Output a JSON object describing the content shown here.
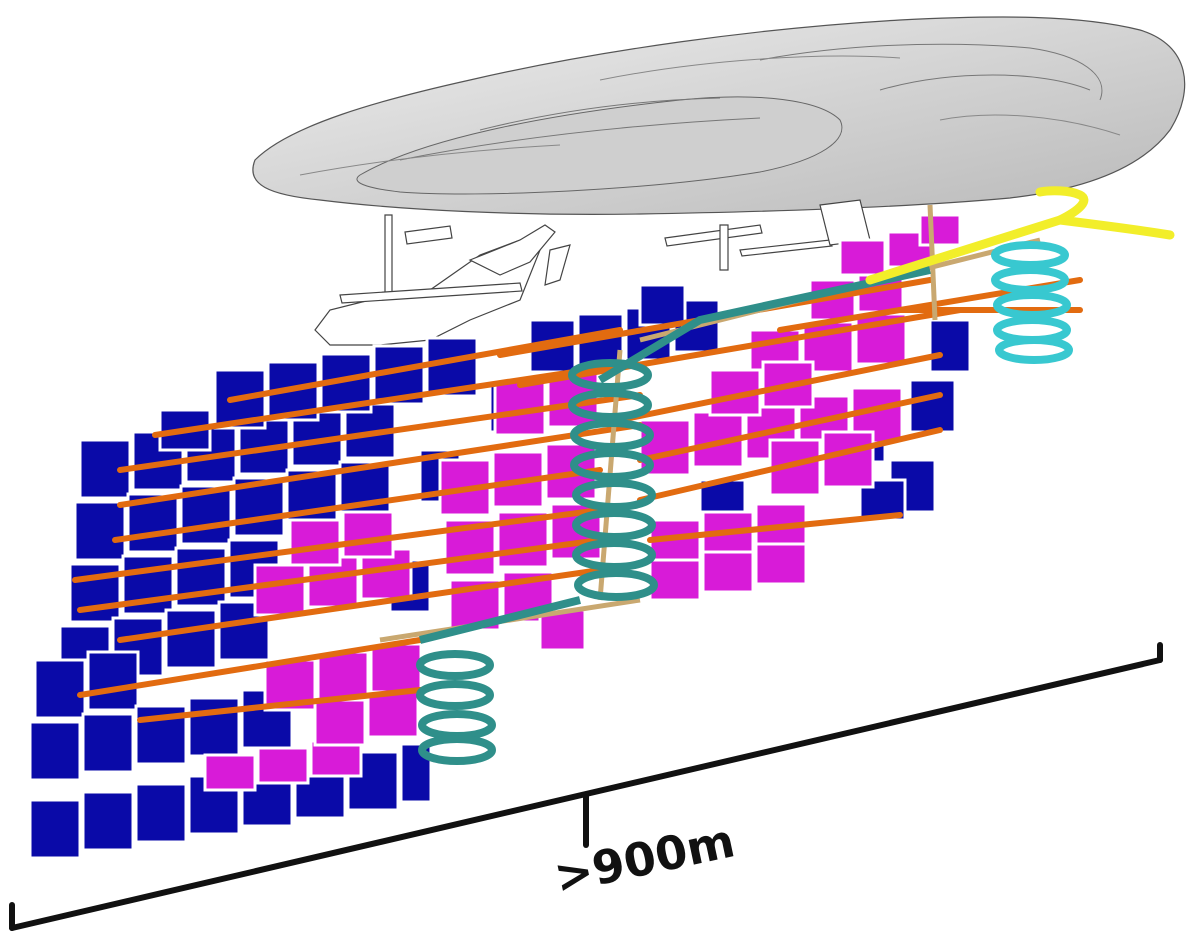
{
  "scale_bar": {
    "label": ">900m"
  },
  "colors": {
    "stope_blue": "#0a0aa8",
    "stope_magenta": "#d81bd8",
    "drive_orange": "#e26b10",
    "decline_teal": "#2f8f8a",
    "decline_cyan": "#38c8d0",
    "portal_yellow": "#f2ee2a",
    "pit_grey": "#d8d8d8",
    "shaft_tan": "#c9a870",
    "scale_black": "#111111"
  }
}
